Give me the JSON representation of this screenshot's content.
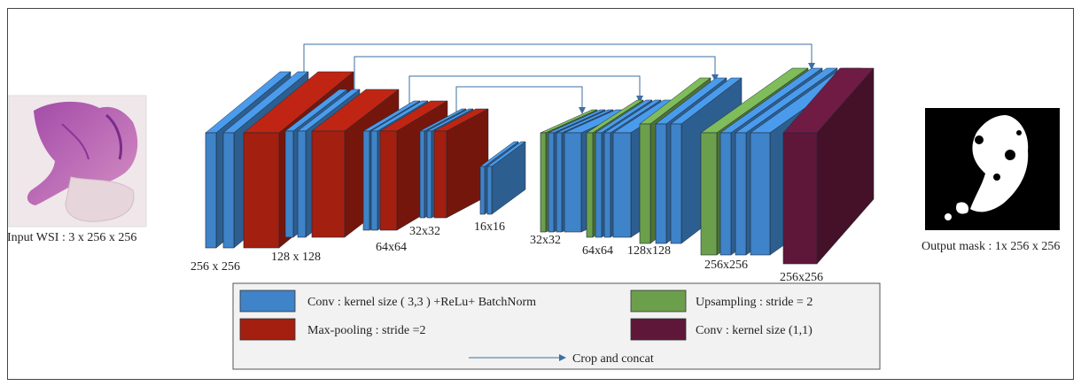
{
  "colors": {
    "conv": "#3f83c8",
    "maxpool": "#a31f10",
    "upsampling": "#6c9f4c",
    "conv1x1": "#5e1739",
    "arrow": "#3d6fa3",
    "legend_bg": "#f2f2f2"
  },
  "input": {
    "label": "Input WSI : 3 x 256 x 256",
    "image_desc": "H&E stained whole slide image tile"
  },
  "output": {
    "label": "Output mask : 1x 256 x 256",
    "image_desc": "binary segmentation mask"
  },
  "stage_labels": {
    "enc1": "256 x 256",
    "enc2": "128 x 128",
    "enc3": "64x64",
    "enc4": "32x32",
    "bottleneck": "16x16",
    "dec4": "32x32",
    "dec3": "64x64",
    "dec2": "128x128",
    "dec1": "256x256",
    "final": "256x256"
  },
  "legend": {
    "conv": "Conv : kernel size ( 3,3 ) +ReLu+ BatchNorm",
    "maxpool": "Max-pooling : stride =2",
    "upsampling": "Upsampling : stride = 2",
    "conv1x1": "Conv : kernel size (1,1)",
    "crop_concat": "Crop and concat"
  }
}
